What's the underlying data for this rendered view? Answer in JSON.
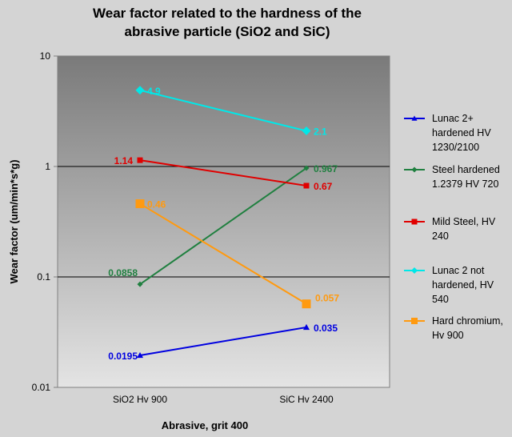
{
  "chart_data": {
    "type": "line",
    "title_lines": [
      "Wear factor related to the hardness of the",
      "abrasive particle (SiO2 and SiC)"
    ],
    "xlabel": "Abrasive, grit 400",
    "ylabel": "Wear factor (um/min*s*g)",
    "y_scale": "log",
    "ylim": [
      0.01,
      10
    ],
    "y_ticks": [
      "0.01",
      "0.1",
      "1",
      "10"
    ],
    "categories": [
      "SiO2 Hv 900",
      "SiC Hv 2400"
    ],
    "grid": "horizontal major",
    "legend_position": "right",
    "series": [
      {
        "name": "Lunac 2+ hardened HV 1230/2100",
        "legend_lines": [
          "Lunac 2+",
          "hardened HV",
          "1230/2100"
        ],
        "values": [
          0.0195,
          0.035
        ],
        "labels": [
          "0.0195",
          "0.035"
        ],
        "color": "#0000e0",
        "marker": "triangle"
      },
      {
        "name": "Steel hardened 1.2379 HV 720",
        "legend_lines": [
          "Steel hardened",
          "1.2379 HV 720"
        ],
        "values": [
          0.0858,
          0.967
        ],
        "labels": [
          "0.0858",
          "0.967"
        ],
        "color": "#208040",
        "marker": "diamond"
      },
      {
        "name": "Mild Steel, HV 240",
        "legend_lines": [
          "Mild Steel, HV",
          "240"
        ],
        "values": [
          1.14,
          0.67
        ],
        "labels": [
          "1.14",
          "0.67"
        ],
        "color": "#e00000",
        "marker": "square"
      },
      {
        "name": "Lunac 2 not hardened, HV 540",
        "legend_lines": [
          "Lunac 2 not",
          "hardened, HV",
          "540"
        ],
        "values": [
          4.9,
          2.1
        ],
        "labels": [
          "4.9",
          "2.1"
        ],
        "color": "#00e8e8",
        "marker": "diamond"
      },
      {
        "name": "Hard chromium, Hv 900",
        "legend_lines": [
          "Hard chromium,",
          "Hv 900"
        ],
        "values": [
          0.46,
          0.057
        ],
        "labels": [
          "0.46",
          "0.057"
        ],
        "color": "#ff9a10",
        "marker": "square"
      }
    ]
  }
}
